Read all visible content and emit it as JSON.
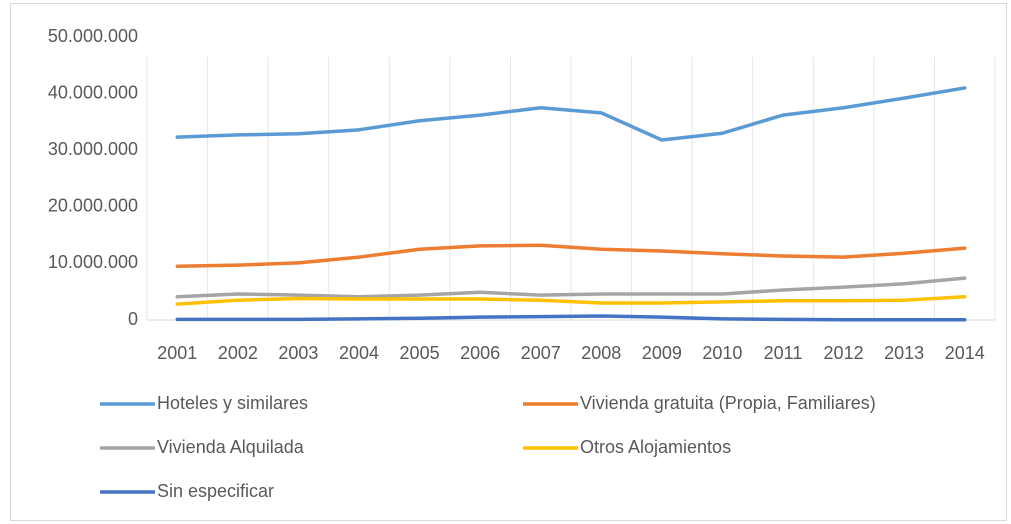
{
  "chart_data": {
    "type": "line",
    "categories": [
      "2001",
      "2002",
      "2003",
      "2004",
      "2005",
      "2006",
      "2007",
      "2008",
      "2009",
      "2010",
      "2011",
      "2012",
      "2013",
      "2014"
    ],
    "series": [
      {
        "name": "Hoteles y similares",
        "color": "#5b9bd5",
        "values": [
          32300000,
          32700000,
          32900000,
          33600000,
          35200000,
          36200000,
          37500000,
          36600000,
          31800000,
          33000000,
          36200000,
          37500000,
          39200000,
          41000000
        ]
      },
      {
        "name": "Vivienda gratuita (Propia, Familiares)",
        "color": "#ed7d31",
        "values": [
          9500000,
          9700000,
          10100000,
          11100000,
          12500000,
          13100000,
          13200000,
          12500000,
          12200000,
          11700000,
          11300000,
          11100000,
          11800000,
          12700000
        ]
      },
      {
        "name": "Vivienda Alquilada",
        "color": "#a5a5a5",
        "values": [
          4100000,
          4600000,
          4400000,
          4100000,
          4400000,
          4900000,
          4400000,
          4600000,
          4600000,
          4600000,
          5300000,
          5800000,
          6400000,
          7400000
        ]
      },
      {
        "name": "Otros Alojamientos",
        "color": "#ffc000",
        "values": [
          2800000,
          3500000,
          3800000,
          3700000,
          3700000,
          3700000,
          3500000,
          3000000,
          3000000,
          3200000,
          3400000,
          3400000,
          3500000,
          4100000
        ]
      },
      {
        "name": "Sin especificar",
        "color": "#4472c4",
        "values": [
          100000,
          100000,
          100000,
          200000,
          300000,
          500000,
          600000,
          700000,
          500000,
          200000,
          100000,
          50000,
          50000,
          50000
        ]
      }
    ],
    "ylim": [
      0,
      50000000
    ],
    "yticks": [
      0,
      {
        "value": 10000000,
        "label": "10.000.000"
      },
      {
        "value": 20000000,
        "label": "20.000.000"
      },
      {
        "value": 30000000,
        "label": "30.000.000"
      },
      {
        "value": 40000000,
        "label": "40.000.000"
      },
      {
        "value": 50000000,
        "label": "50.000.000"
      }
    ],
    "grid": true,
    "legend": "bottom"
  }
}
